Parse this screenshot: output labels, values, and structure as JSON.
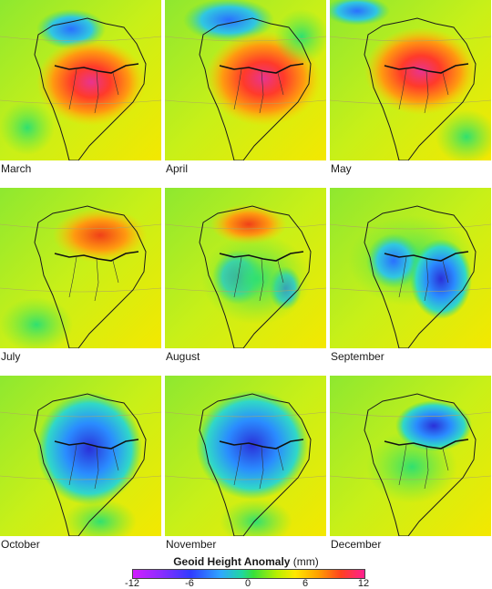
{
  "maps": [
    {
      "label": "March"
    },
    {
      "label": "April"
    },
    {
      "label": "May"
    },
    {
      "label": "July"
    },
    {
      "label": "August"
    },
    {
      "label": "September"
    },
    {
      "label": "October"
    },
    {
      "label": "November"
    },
    {
      "label": "December"
    }
  ],
  "legend": {
    "title": "Geoid Height Anomaly",
    "unit": "(mm)",
    "ticks": [
      "-12",
      "-6",
      "0",
      "6",
      "12"
    ],
    "colors": [
      "#d21eff",
      "#2f3cff",
      "#38e03a",
      "#ffa000",
      "#ff2090"
    ]
  }
}
